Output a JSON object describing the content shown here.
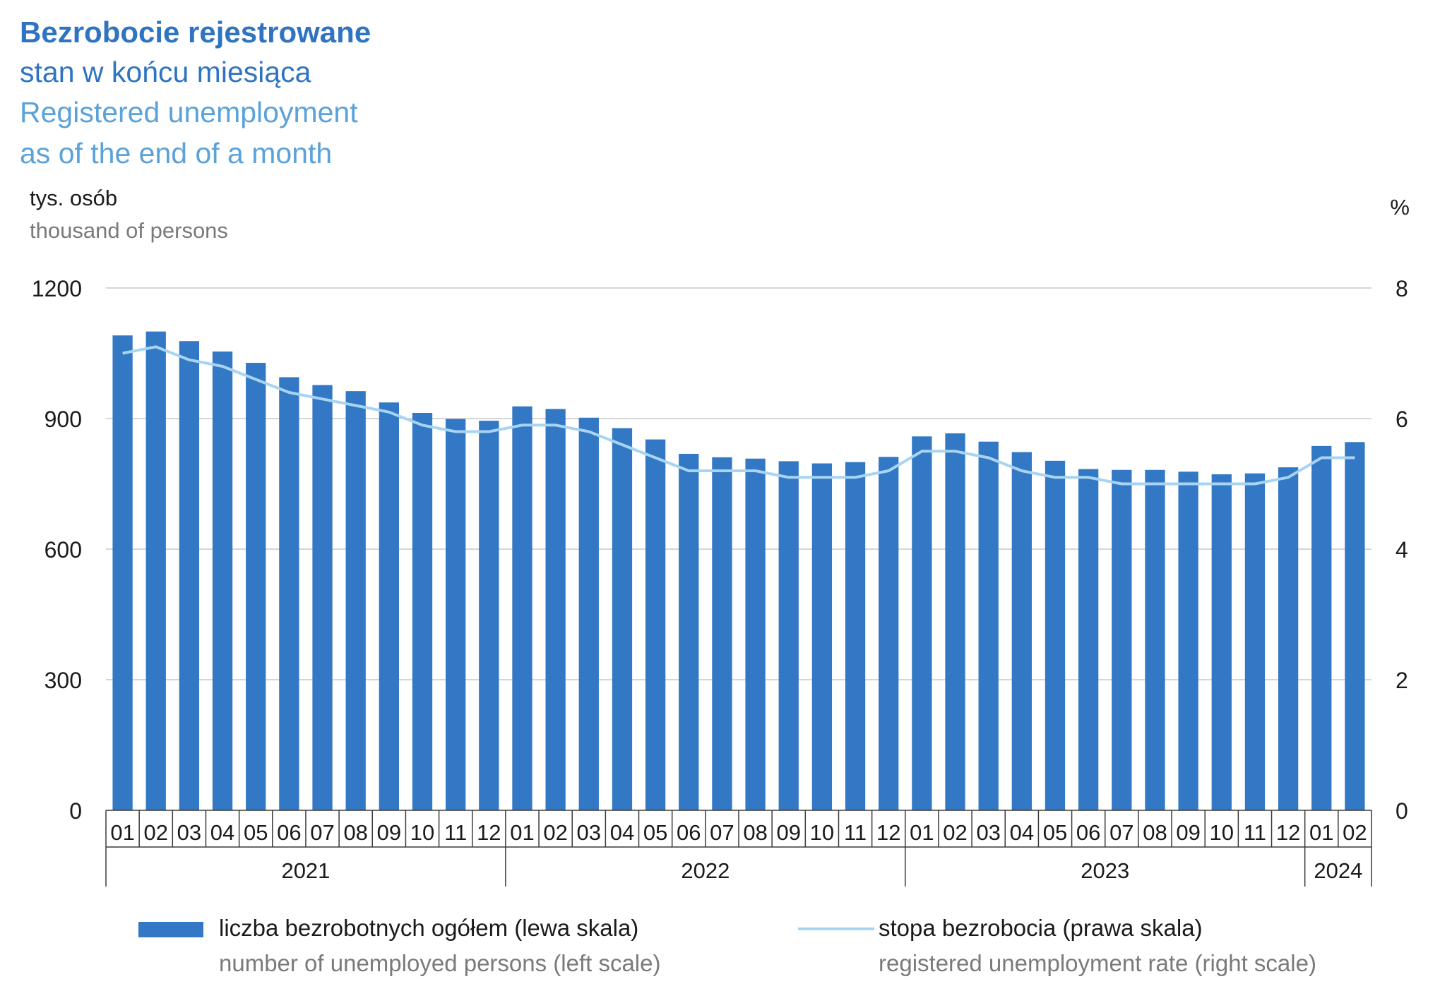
{
  "title": {
    "pl_bold": "Bezrobocie rejestrowane",
    "pl_sub": "stan w końcu miesiąca",
    "en_line1": "Registered unemployment",
    "en_line2": "as of the end of a month"
  },
  "left_axis_unit": {
    "pl": "tys. osób",
    "en": "thousand of persons"
  },
  "right_axis_unit": "%",
  "legend": {
    "bars": {
      "pl": "liczba bezrobotnych ogółem (lewa skala)",
      "en": "number of unemployed persons (left scale)"
    },
    "line": {
      "pl": "stopa bezrobocia (prawa skala)",
      "en": "registered unemployment rate (right scale)"
    }
  },
  "colors": {
    "bars": "#3278c4",
    "line": "#a8d4f4",
    "title": "#2f74c0",
    "title_en": "#5aa2d8"
  },
  "chart_data": {
    "type": "bar",
    "categories": [
      "01",
      "02",
      "03",
      "04",
      "05",
      "06",
      "07",
      "08",
      "09",
      "10",
      "11",
      "12",
      "01",
      "02",
      "03",
      "04",
      "05",
      "06",
      "07",
      "08",
      "09",
      "10",
      "11",
      "12",
      "01",
      "02",
      "03",
      "04",
      "05",
      "06",
      "07",
      "08",
      "09",
      "10",
      "11",
      "12",
      "01",
      "02"
    ],
    "years": [
      {
        "label": "2021",
        "count": 12
      },
      {
        "label": "2022",
        "count": 12
      },
      {
        "label": "2023",
        "count": 12
      },
      {
        "label": "2024",
        "count": 2
      }
    ],
    "series": [
      {
        "axis": "left",
        "type": "bar",
        "values": [
          1091,
          1100,
          1078,
          1054,
          1028,
          995,
          977,
          963,
          937,
          913,
          899,
          895,
          928,
          922,
          902,
          878,
          852,
          819,
          811,
          808,
          802,
          797,
          800,
          812,
          859,
          866,
          847,
          823,
          803,
          784,
          782,
          782,
          778,
          772,
          774,
          788,
          837,
          846
        ]
      },
      {
        "axis": "right",
        "type": "line",
        "values": [
          7.0,
          7.1,
          6.9,
          6.8,
          6.6,
          6.4,
          6.3,
          6.2,
          6.1,
          5.9,
          5.8,
          5.8,
          5.9,
          5.9,
          5.8,
          5.6,
          5.4,
          5.2,
          5.2,
          5.2,
          5.1,
          5.1,
          5.1,
          5.2,
          5.5,
          5.5,
          5.4,
          5.2,
          5.1,
          5.1,
          5.0,
          5.0,
          5.0,
          5.0,
          5.0,
          5.1,
          5.4,
          5.4
        ]
      }
    ],
    "ylim_left": [
      0,
      1200
    ],
    "yticks_left": [
      0,
      300,
      600,
      900,
      1200
    ],
    "ylim_right": [
      0,
      8
    ],
    "yticks_right": [
      0,
      2,
      4,
      6,
      8
    ],
    "grid": "horizontal"
  }
}
